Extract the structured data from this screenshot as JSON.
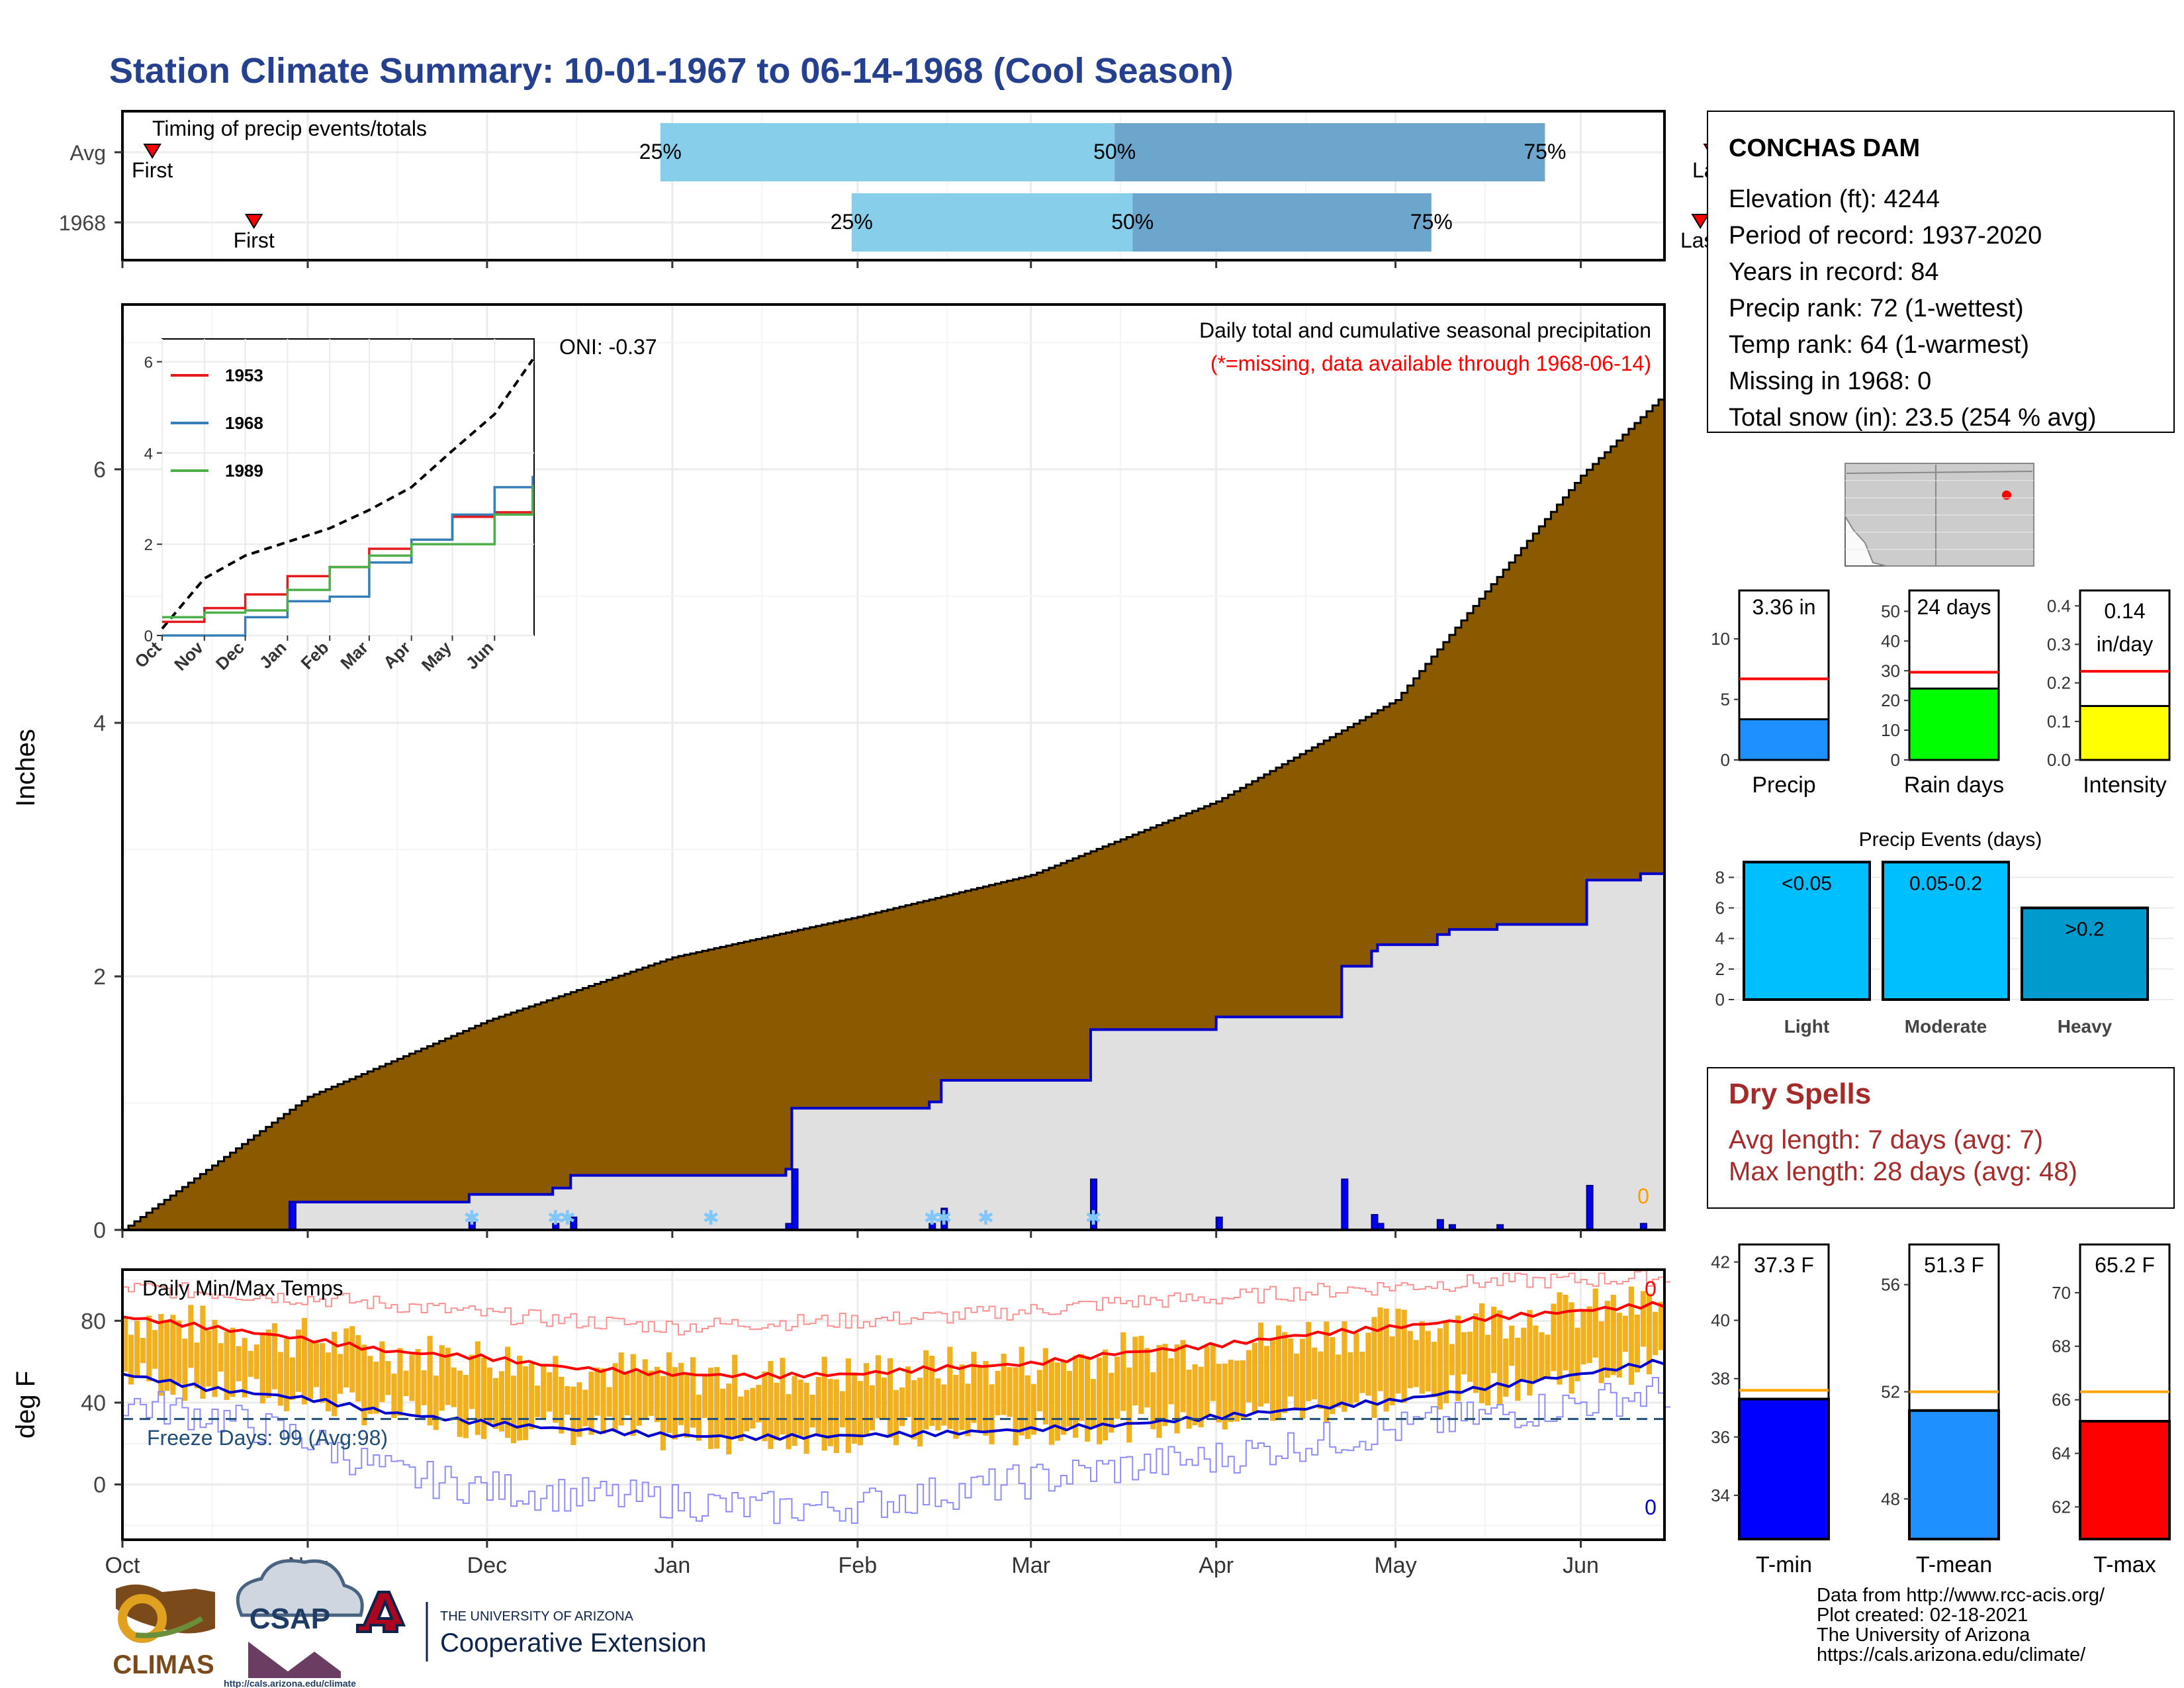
{
  "title": "Station Climate Summary: 10-01-1967 to 06-14-1968 (Cool Season)",
  "month_labels": [
    "Oct",
    "Nov",
    "Dec",
    "Jan",
    "Feb",
    "Mar",
    "Apr",
    "May",
    "Jun"
  ],
  "timing": {
    "label": "Timing of precip events/totals",
    "rows": [
      {
        "name": "Avg",
        "first_day": 5,
        "p25_day": 90,
        "p50_day": 166,
        "p75_day": 238,
        "last_day": 266,
        "first_label": "First",
        "last_label": "Last",
        "p25_label": "25%",
        "p50_label": "50%",
        "p75_label": "75%"
      },
      {
        "name": "1968",
        "first_day": 22,
        "p25_day": 122,
        "p50_day": 169,
        "p75_day": 219,
        "last_day": 264,
        "first_label": "First",
        "last_label": "Last",
        "p25_label": "25%",
        "p50_label": "50%",
        "p75_label": "75%"
      }
    ]
  },
  "precip_panel": {
    "ylabel": "Inches",
    "yticks": [
      "0",
      "2",
      "4",
      "6"
    ],
    "title_line1": "Daily total and cumulative seasonal precipitation",
    "title_line2": "(*=missing, data available through 1968-06-14)",
    "oni_label": "ONI: -0.37",
    "missing_count": "0",
    "colors": {
      "avg_fill": "#8b5a00",
      "current_fill": "#e0e0e0",
      "line": "#0000cc",
      "daily_bar": "#0000ff",
      "snow": "#7ec8ff",
      "missing": "#ff9900"
    }
  },
  "inset": {
    "yticks": [
      "0",
      "2",
      "4",
      "6"
    ],
    "xticks": [
      "Oct",
      "Nov",
      "Dec",
      "Jan",
      "Feb",
      "Mar",
      "Apr",
      "May",
      "Jun"
    ],
    "legend": [
      {
        "name": "1953",
        "color": "#e41a1c"
      },
      {
        "name": "1968",
        "color": "#377eb8"
      },
      {
        "name": "1989",
        "color": "#4daf4a"
      }
    ]
  },
  "station": {
    "name": "CONCHAS DAM",
    "lines": [
      "Elevation (ft): 4244",
      "Period of record: 1937-2020",
      "Years in record: 84",
      "Precip rank: 72 (1-wettest)",
      "Temp rank: 64 (1-warmest)",
      "Missing in 1968: 0",
      "Total snow (in): 23.5 (254 % avg)"
    ]
  },
  "summary_bars": [
    {
      "label": "Precip",
      "value_label": "3.36 in",
      "value": 3.36,
      "avg": 6.7,
      "ymax": 14,
      "yticks": [
        "0",
        "5",
        "10"
      ],
      "tickvals": [
        0,
        5,
        10
      ],
      "color": "#1e90ff"
    },
    {
      "label": "Rain days",
      "value_label": "24 days",
      "value": 24,
      "avg": 29.5,
      "ymax": 57,
      "yticks": [
        "0",
        "10",
        "20",
        "30",
        "40",
        "50"
      ],
      "tickvals": [
        0,
        10,
        20,
        30,
        40,
        50
      ],
      "color": "#00ff00"
    },
    {
      "label": "Intensity",
      "value_label_line1": "0.14",
      "value_label_line2": "in/day",
      "value": 0.14,
      "avg": 0.23,
      "ymax": 0.44,
      "yticks": [
        "0.0",
        "0.1",
        "0.2",
        "0.3",
        "0.4"
      ],
      "tickvals": [
        0,
        0.1,
        0.2,
        0.3,
        0.4
      ],
      "color": "#ffff00"
    }
  ],
  "precip_events": {
    "title": "Precip Events (days)",
    "yticks": [
      "0",
      "2",
      "4",
      "6",
      "8"
    ],
    "bars": [
      {
        "label": "Light",
        "value_label": "<0.05",
        "value": 9,
        "color": "#00bfff"
      },
      {
        "label": "Moderate",
        "value_label": "0.05-0.2",
        "value": 9,
        "color": "#00bfff"
      },
      {
        "label": "Heavy",
        "value_label": ">0.2",
        "value": 6,
        "color": "#009acd"
      }
    ]
  },
  "dry_spells": {
    "title": "Dry Spells",
    "line1": "Avg length: 7 days (avg: 7)",
    "line2": "Max length: 28 days (avg: 48)",
    "color": "#a52a2a"
  },
  "temp_panel": {
    "ylabel": "deg F",
    "yticks": [
      "0",
      "40",
      "80"
    ],
    "title": "Daily Min/Max Temps",
    "freeze_label": "Freeze Days: 99 (Avg:98)",
    "freeze_f": 32,
    "top_count": "0",
    "bottom_count": "0",
    "colors": {
      "bar": "#f0b020",
      "avg_max": "#ff0000",
      "avg_min": "#0000cc",
      "rec_max": "#ff9090",
      "rec_min": "#8c8cff",
      "freeze": "#1f4e79"
    }
  },
  "temp_bars": [
    {
      "label": "T-min",
      "value_label": "37.3 F",
      "value": 37.3,
      "avg": 37.6,
      "ymin": 32.5,
      "ymax": 42.6,
      "yticks": [
        "34",
        "36",
        "38",
        "40",
        "42"
      ],
      "tickvals": [
        34,
        36,
        38,
        40,
        42
      ],
      "color": "#0000ff"
    },
    {
      "label": "T-mean",
      "value_label": "51.3 F",
      "value": 51.3,
      "avg": 52.0,
      "ymin": 46.5,
      "ymax": 57.5,
      "yticks": [
        "48",
        "52",
        "56"
      ],
      "tickvals": [
        48,
        52,
        56
      ],
      "color": "#1e90ff"
    },
    {
      "label": "T-max",
      "value_label": "65.2 F",
      "value": 65.2,
      "avg": 66.3,
      "ymin": 60.8,
      "ymax": 71.8,
      "yticks": [
        "62",
        "64",
        "66",
        "68",
        "70"
      ],
      "tickvals": [
        62,
        64,
        66,
        68,
        70
      ],
      "color": "#ff0000"
    }
  ],
  "footer": {
    "lines": [
      "Data from http://www.rcc-acis.org/",
      "Plot created: 02-18-2021",
      "The University of Arizona",
      "https://cals.arizona.edu/climate/"
    ],
    "climas_text": "CLIMAS",
    "csap_text": "CSAP",
    "csap_url": "http://cals.arizona.edu/climate",
    "ua_line1": "THE UNIVERSITY OF ARIZONA",
    "ua_line2": "Cooperative Extension"
  },
  "chart_data": [
    {
      "type": "bar",
      "title": "Timing of precip events/totals",
      "categories": [
        "Avg",
        "1968"
      ],
      "series": [
        {
          "name": "First",
          "values": [
            "Oct 6",
            "Oct 23"
          ]
        },
        {
          "name": "25%",
          "values": [
            "Dec 29",
            "Jan 30"
          ]
        },
        {
          "name": "50%",
          "values": [
            "Mar 15",
            "Mar 18"
          ]
        },
        {
          "name": "75%",
          "values": [
            "May 26",
            "May 7"
          ]
        },
        {
          "name": "Last",
          "values": [
            "Jun 23",
            "Jun 21"
          ]
        }
      ]
    },
    {
      "type": "area",
      "title": "Daily total and cumulative seasonal precipitation",
      "xlabel": "",
      "ylabel": "Inches",
      "ylim": [
        0,
        7.3
      ],
      "x": [
        "Oct 1",
        "Nov 1",
        "Dec 1",
        "Jan 1",
        "Feb 1",
        "Mar 1",
        "Apr 1",
        "May 1",
        "Jun 1",
        "Jun 14"
      ],
      "series": [
        {
          "name": "",
          "values": [
            0,
            1.05,
            1.65,
            2.15,
            2.47,
            2.8,
            3.38,
            4.18,
            5.95,
            6.55
          ]
        },
        {
          "name": "",
          "values": [
            0,
            0.22,
            0.37,
            0.7,
            1.35,
            1.55,
            2.17,
            2.38,
            3.25,
            3.36
          ]
        }
      ],
      "daily": [
        {
          "date": "Oct 29",
          "value": 0.22
        },
        {
          "date": "Nov 28",
          "value": 0.06
        },
        {
          "date": "Dec 12",
          "value": 0.05
        },
        {
          "date": "Dec 15",
          "value": 0.1
        },
        {
          "date": "Jan 20",
          "value": 0.05
        },
        {
          "date": "Jan 21",
          "value": 0.48
        },
        {
          "date": "Feb 13",
          "value": 0.05
        },
        {
          "date": "Feb 15",
          "value": 0.17
        },
        {
          "date": "Mar 11",
          "value": 0.4
        },
        {
          "date": "Apr 1",
          "value": 0.1
        },
        {
          "date": "Apr 22",
          "value": 0.4
        },
        {
          "date": "Apr 27",
          "value": 0.12
        },
        {
          "date": "Apr 28",
          "value": 0.05
        },
        {
          "date": "May 8",
          "value": 0.08
        },
        {
          "date": "May 10",
          "value": 0.04
        },
        {
          "date": "May 18",
          "value": 0.04
        },
        {
          "date": "Jun 2",
          "value": 0.35
        },
        {
          "date": "Jun 11",
          "value": 0.05
        }
      ],
      "snow_dates": [
        "Nov 28",
        "Dec 12",
        "Dec 14",
        "Jan 7",
        "Feb 13",
        "Feb 15",
        "Feb 22",
        "Mar 11"
      ]
    },
    {
      "type": "line",
      "title": "",
      "xlabel": "",
      "ylabel": "",
      "ylim": [
        0,
        6.2
      ],
      "x": [
        "Oct",
        "Nov",
        "Dec",
        "Jan",
        "Feb",
        "Mar",
        "Apr",
        "May",
        "Jun",
        "Jun 30"
      ],
      "series": [
        {
          "name": "",
          "values": [
            0.15,
            1.25,
            1.75,
            2.05,
            2.35,
            2.75,
            3.25,
            4.05,
            4.85,
            6.05
          ]
        },
        {
          "name": "1953",
          "values": [
            0.3,
            0.6,
            0.9,
            1.3,
            1.5,
            1.9,
            2.1,
            2.6,
            2.7,
            3.3
          ]
        },
        {
          "name": "1968",
          "values": [
            0,
            0,
            0.4,
            0.75,
            0.85,
            1.6,
            2.1,
            2.65,
            3.25,
            3.5
          ]
        },
        {
          "name": "1989",
          "values": [
            0.4,
            0.5,
            0.55,
            1.0,
            1.5,
            1.75,
            2.0,
            2.0,
            2.65,
            3.3
          ]
        }
      ]
    },
    {
      "type": "bar",
      "title": "",
      "categories": [
        "Precip",
        "Rain days",
        "Intensity"
      ],
      "series": [
        {
          "name": "1968",
          "values": [
            3.36,
            24,
            0.14
          ]
        },
        {
          "name": "Avg",
          "values": [
            6.7,
            29.5,
            0.23
          ]
        }
      ]
    },
    {
      "type": "bar",
      "title": "Precip Events (days)",
      "categories": [
        "Light",
        "Moderate",
        "Heavy"
      ],
      "values": [
        9,
        9,
        6
      ],
      "ylim": [
        0,
        9
      ]
    },
    {
      "type": "line",
      "title": "Daily Min/Max Temps",
      "xlabel": "",
      "ylabel": "deg F",
      "ylim": [
        -27,
        105
      ],
      "x": [
        "Oct 1",
        "Oct 15",
        "Nov 1",
        "Nov 15",
        "Dec 1",
        "Dec 15",
        "Jan 1",
        "Jan 15",
        "Feb 1",
        "Feb 15",
        "Mar 1",
        "Mar 15",
        "Apr 1",
        "Apr 15",
        "May 1",
        "May 15",
        "Jun 1",
        "Jun 14"
      ],
      "series": [
        {
          "name": "",
          "values": [
            82,
            77,
            71,
            65,
            62,
            57,
            54,
            53,
            54,
            57,
            59,
            64,
            68,
            73,
            77,
            81,
            85,
            88
          ]
        },
        {
          "name": "",
          "values": [
            54,
            47,
            42,
            35,
            30,
            27,
            24,
            23,
            24,
            25,
            27,
            29,
            33,
            37,
            41,
            47,
            54,
            60
          ]
        },
        {
          "name": "",
          "values": [
            96,
            94,
            91,
            88,
            83,
            80,
            77,
            79,
            80,
            82,
            85,
            89,
            91,
            94,
            97,
            99,
            100,
            101
          ]
        },
        {
          "name": "",
          "values": [
            40,
            34,
            22,
            5,
            -2,
            -5,
            -8,
            -12,
            -10,
            -4,
            2,
            8,
            13,
            20,
            27,
            33,
            40,
            45
          ]
        }
      ],
      "freeze_threshold": 32
    },
    {
      "type": "bar",
      "title": "",
      "categories": [
        "T-min",
        "T-mean",
        "T-max"
      ],
      "series": [
        {
          "name": "1968",
          "values": [
            37.3,
            51.3,
            65.2
          ]
        },
        {
          "name": "Avg",
          "values": [
            37.6,
            52.0,
            66.3
          ]
        }
      ]
    }
  ]
}
